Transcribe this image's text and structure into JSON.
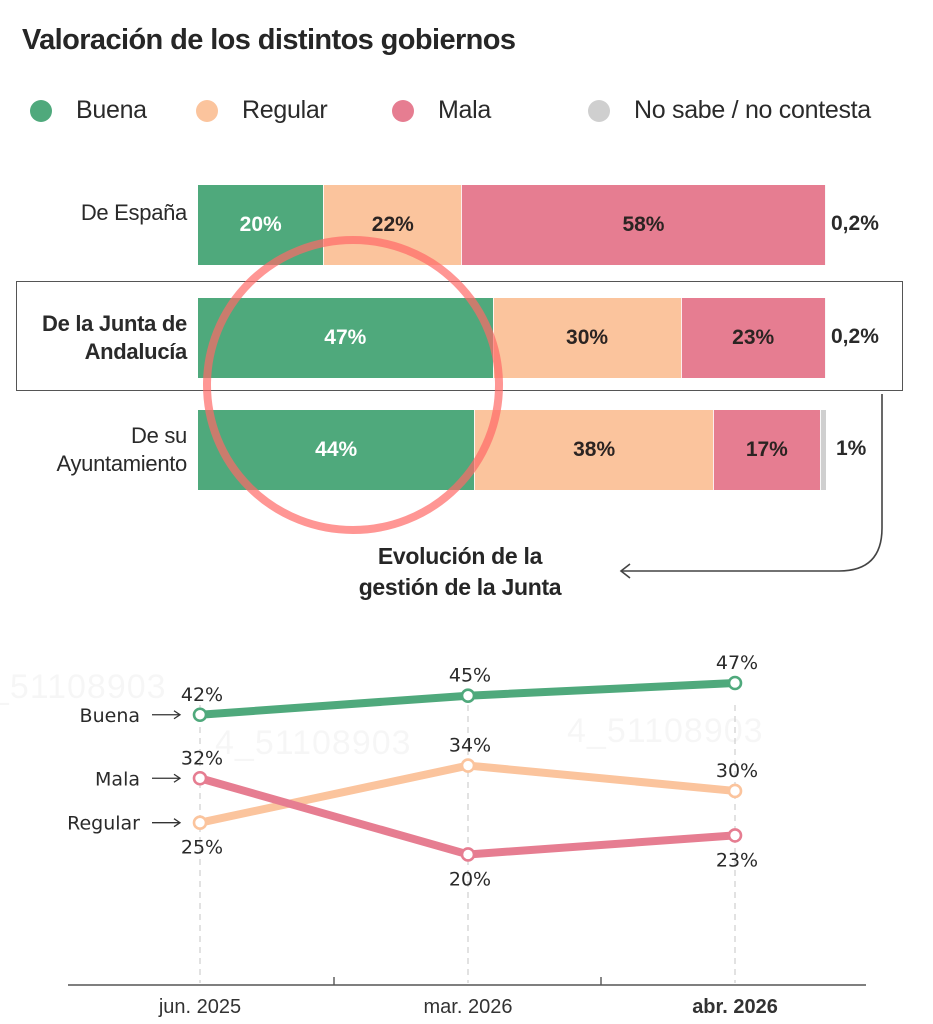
{
  "title": "Valoración de los distintos gobiernos",
  "legend": [
    {
      "label": "Buena",
      "color": "#4fa97c"
    },
    {
      "label": "Regular",
      "color": "#fbc49d"
    },
    {
      "label": "Mala",
      "color": "#e67d91"
    },
    {
      "label": "No sabe / no contesta",
      "color": "#cfcfcf"
    }
  ],
  "watermark": "4_51108903",
  "subtitle_line1": "Evolución de la",
  "subtitle_line2": "gestión de la Junta",
  "chart_data": [
    {
      "type": "bar",
      "orientation": "horizontal-stacked",
      "title": "Valoración de los distintos gobiernos",
      "categories": [
        "De España",
        "De la Junta de Andalucía",
        "De su Ayuntamiento"
      ],
      "category_lines": [
        [
          "De España"
        ],
        [
          "De la Junta de",
          "Andalucía"
        ],
        [
          "De su",
          "Ayuntamiento"
        ]
      ],
      "highlighted_category": "De la Junta de Andalucía",
      "series": [
        {
          "name": "Buena",
          "color": "#4fa97c",
          "values": [
            20,
            47,
            44
          ],
          "labels": [
            "20%",
            "47%",
            "44%"
          ]
        },
        {
          "name": "Regular",
          "color": "#fbc49d",
          "values": [
            22,
            30,
            38
          ],
          "labels": [
            "22%",
            "30%",
            "38%"
          ]
        },
        {
          "name": "Mala",
          "color": "#e67d91",
          "values": [
            58,
            23,
            17
          ],
          "labels": [
            "58%",
            "23%",
            "17%"
          ]
        },
        {
          "name": "No sabe / no contesta",
          "color": "#cfcfcf",
          "values": [
            0.2,
            0.2,
            1
          ],
          "labels": [
            "0,2%",
            "0,2%",
            "1%"
          ]
        }
      ],
      "xlim": [
        0,
        100
      ],
      "legend": "top",
      "annotation": "red circle around Buena values of Junta and Ayuntamiento"
    },
    {
      "type": "line",
      "title": "Evolución de la gestión de la Junta",
      "x": [
        "jun. 2025",
        "mar. 2026",
        "abr. 2026"
      ],
      "x_bold": [
        false,
        false,
        true
      ],
      "series": [
        {
          "name": "Buena",
          "color": "#4fa97c",
          "values": [
            42,
            45,
            47
          ],
          "labels": [
            "42%",
            "45%",
            "47%"
          ],
          "label_pos": [
            "above",
            "above",
            "above"
          ]
        },
        {
          "name": "Mala",
          "color": "#e67d91",
          "values": [
            32,
            20,
            23
          ],
          "labels": [
            "32%",
            "20%",
            "23%"
          ],
          "label_pos": [
            "above",
            "below",
            "below"
          ]
        },
        {
          "name": "Regular",
          "color": "#fbc49d",
          "values": [
            25,
            34,
            30
          ],
          "labels": [
            "25%",
            "34%",
            "30%"
          ],
          "label_pos": [
            "below",
            "above",
            "above"
          ]
        }
      ],
      "series_labels_left": [
        "Buena",
        "Mala",
        "Regular"
      ],
      "ylim": [
        15,
        50
      ],
      "grid": "vertical dashed at each date",
      "xlabel": "",
      "ylabel": ""
    }
  ]
}
